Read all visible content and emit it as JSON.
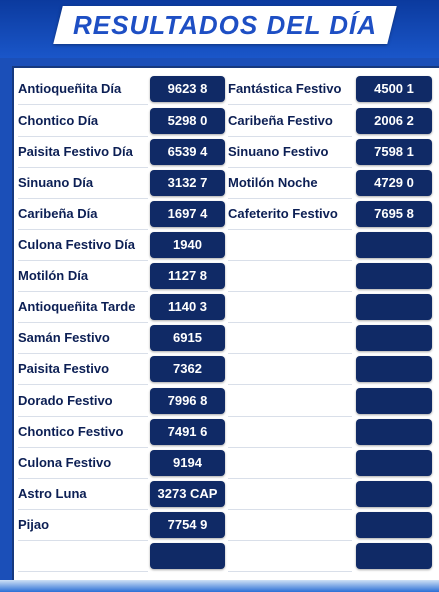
{
  "title": "RESULTADOS DEL DÍA",
  "left": [
    {
      "name": "Antioqueñita Día",
      "value": "9623 8"
    },
    {
      "name": "Chontico Día",
      "value": "5298 0"
    },
    {
      "name": "Paisita Festivo Día",
      "value": "6539 4"
    },
    {
      "name": "Sinuano Día",
      "value": "3132 7"
    },
    {
      "name": "Caribeña Día",
      "value": "1697 4"
    },
    {
      "name": "Culona Festivo Día",
      "value": "1940"
    },
    {
      "name": "Motilón Día",
      "value": "1127 8"
    },
    {
      "name": "Antioqueñita Tarde",
      "value": "1140 3"
    },
    {
      "name": "Samán Festivo",
      "value": "6915"
    },
    {
      "name": "Paisita Festivo",
      "value": "7362"
    },
    {
      "name": "Dorado Festivo",
      "value": "7996 8"
    },
    {
      "name": "Chontico Festivo",
      "value": "7491 6"
    },
    {
      "name": "Culona Festivo",
      "value": "9194"
    },
    {
      "name": "Astro Luna",
      "value": "3273 CAP"
    },
    {
      "name": "Pijao",
      "value": "7754 9"
    },
    {
      "name": "",
      "value": ""
    }
  ],
  "right": [
    {
      "name": "Fantástica Festivo",
      "value": "4500 1"
    },
    {
      "name": "Caribeña Festivo",
      "value": "2006 2"
    },
    {
      "name": "Sinuano Festivo",
      "value": "7598 1"
    },
    {
      "name": "Motilón Noche",
      "value": "4729 0"
    },
    {
      "name": "Cafeterito Festivo",
      "value": "7695 8"
    },
    {
      "name": "",
      "value": ""
    },
    {
      "name": "",
      "value": ""
    },
    {
      "name": "",
      "value": ""
    },
    {
      "name": "",
      "value": ""
    },
    {
      "name": "",
      "value": ""
    },
    {
      "name": "",
      "value": ""
    },
    {
      "name": "",
      "value": ""
    },
    {
      "name": "",
      "value": ""
    },
    {
      "name": "",
      "value": ""
    },
    {
      "name": "",
      "value": ""
    },
    {
      "name": "",
      "value": ""
    }
  ]
}
